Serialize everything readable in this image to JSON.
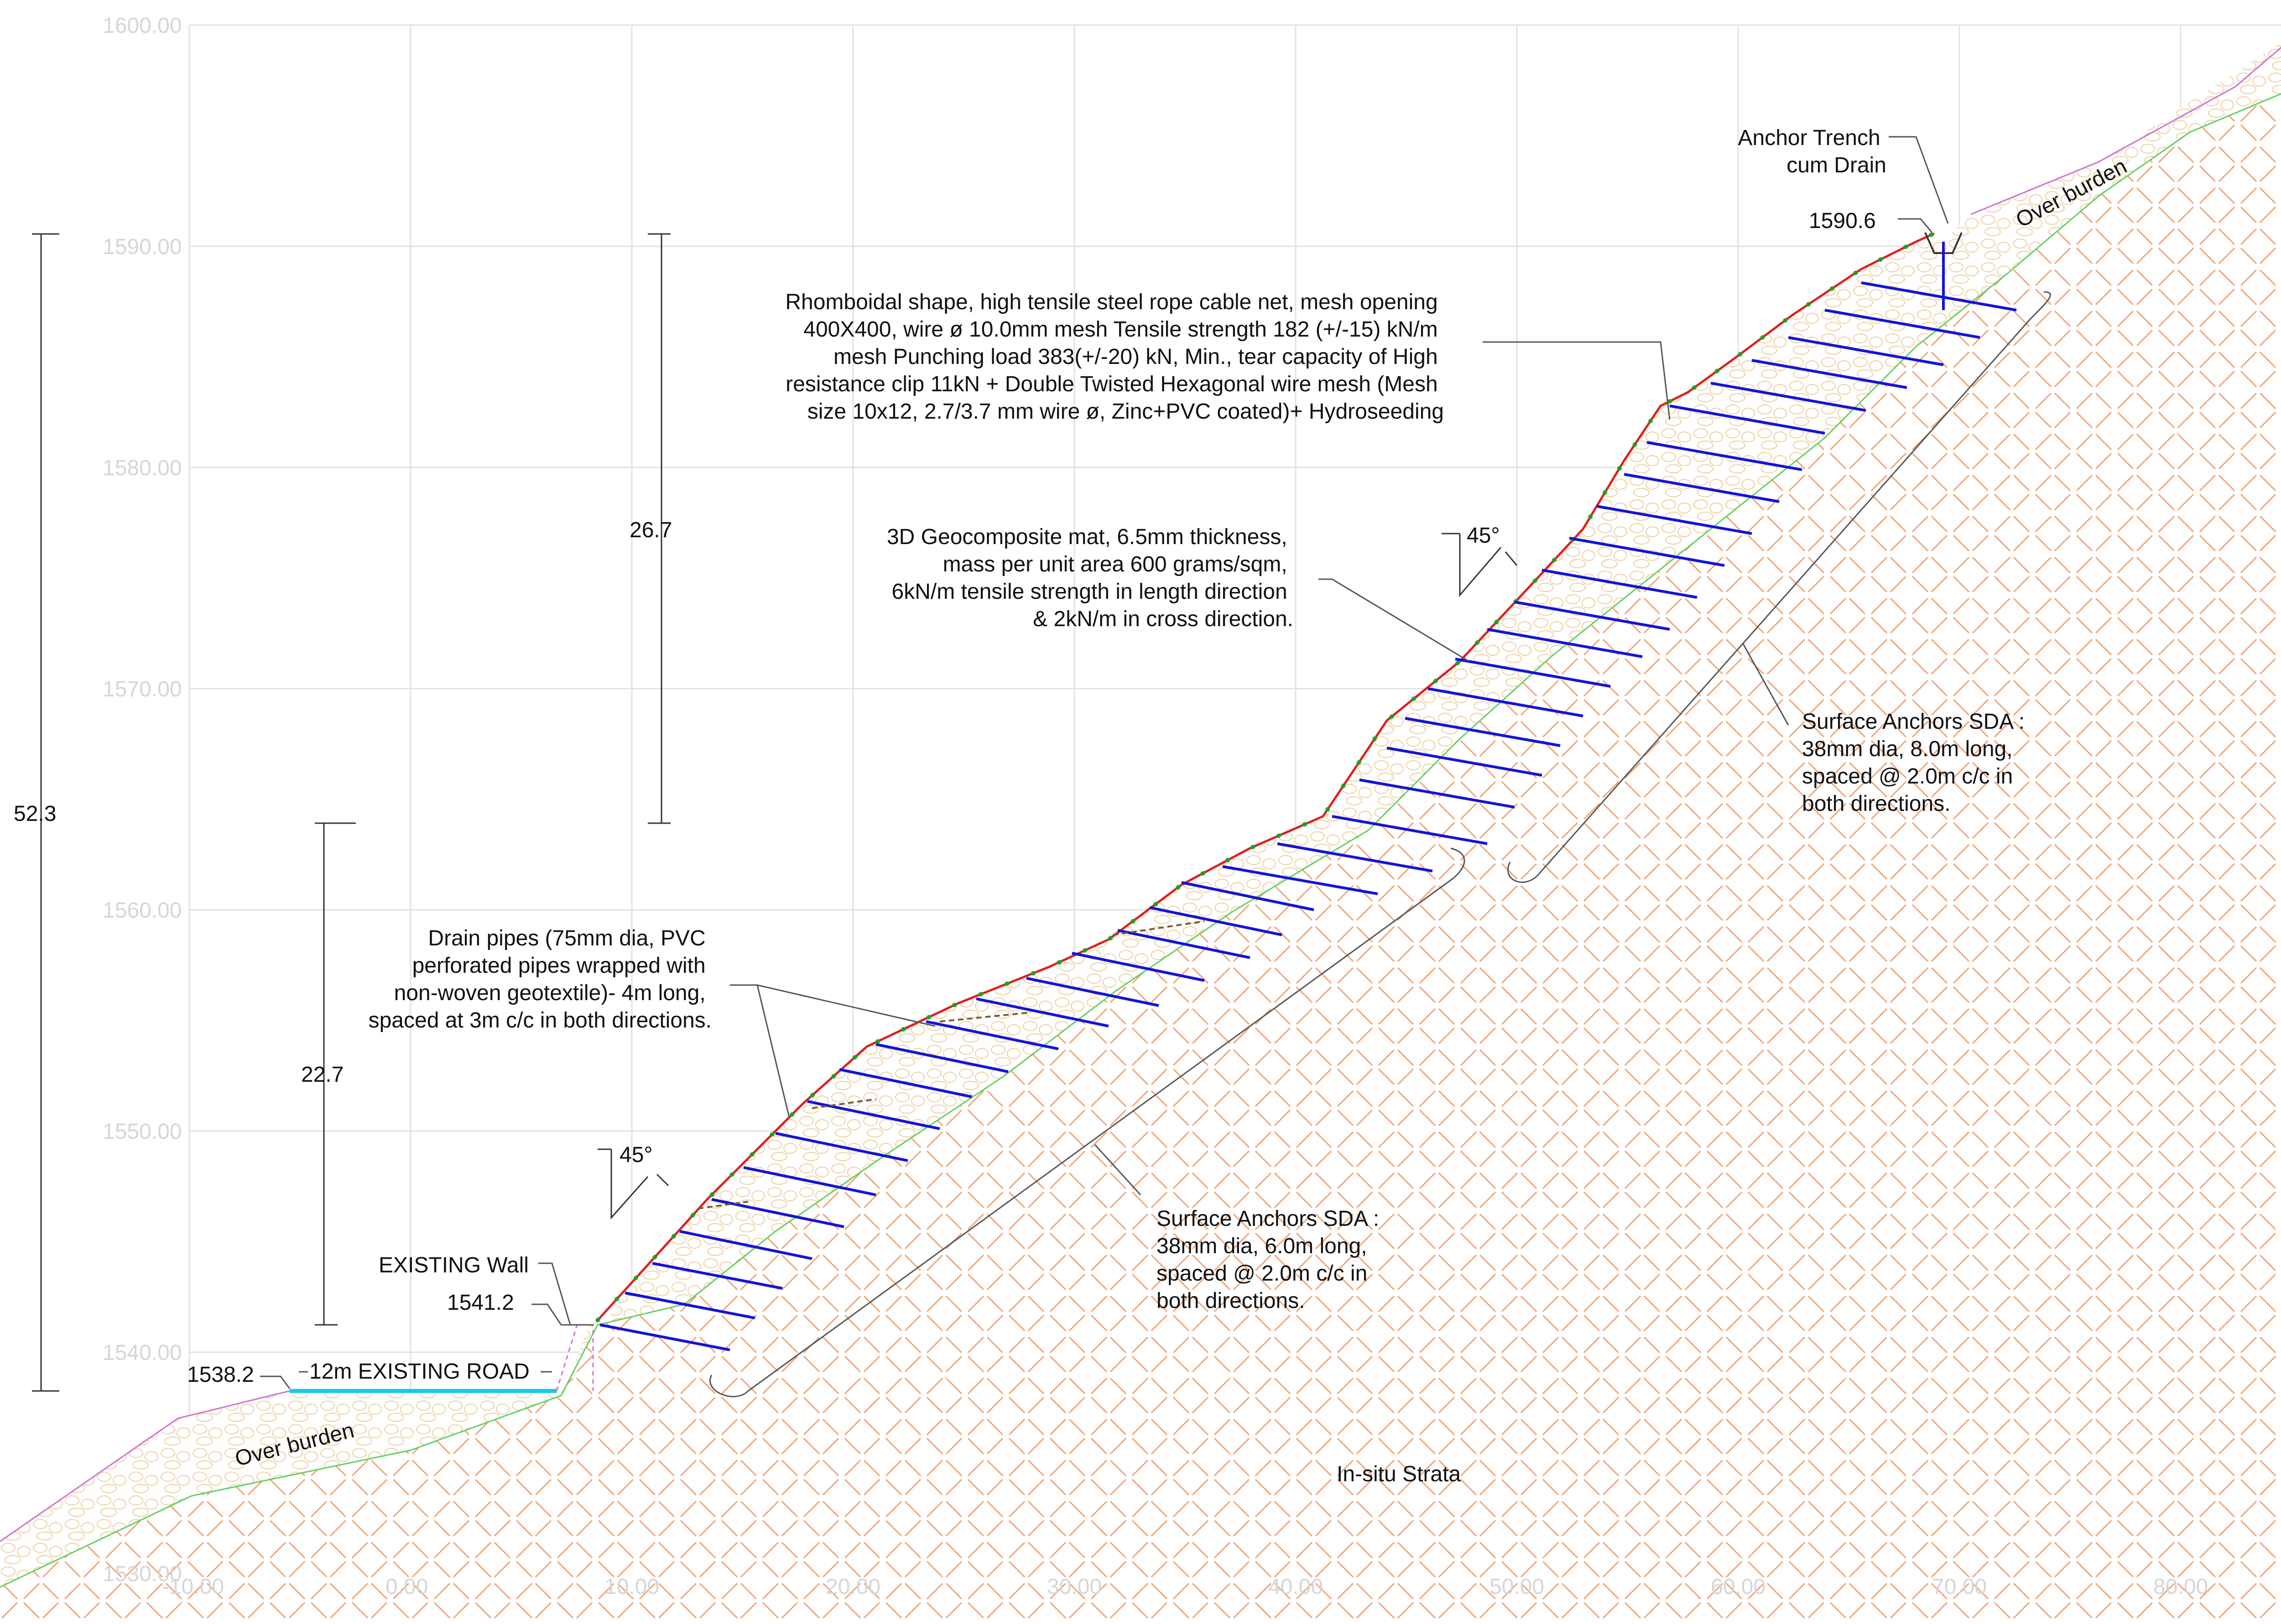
{
  "axes": {
    "y_ticks": [
      "1530.00",
      "1540.00",
      "1550.00",
      "1560.00",
      "1570.00",
      "1580.00",
      "1590.00",
      "1600.00"
    ],
    "x_ticks": [
      "-10.00",
      "0.00",
      "10.00",
      "20.00",
      "30.00",
      "40.00",
      "50.00",
      "60.00",
      "70.00",
      "80.00"
    ]
  },
  "dimensions": {
    "total_height": "52.3",
    "upper_height": "26.7",
    "lower_height": "22.7",
    "upper_angle": "45°",
    "lower_angle": "45°"
  },
  "levels": {
    "road": "1538.2",
    "wall_top": "1541.2",
    "crest": "1590.6"
  },
  "labels": {
    "road": "12m EXISTING ROAD",
    "wall": "EXISTING Wall",
    "overburden_left": "Over burden",
    "overburden_right": "Over burden",
    "insitu": "In-situ Strata",
    "anchor_trench": [
      "Anchor Trench",
      "cum Drain"
    ],
    "cable_net": [
      "Rhomboidal shape, high tensile steel rope cable net, mesh opening",
      "400X400, wire ø 10.0mm mesh Tensile strength 182 (+/-15) kN/m",
      "mesh Punching load 383(+/-20) kN, Min., tear capacity of High",
      "resistance clip 11kN + Double Twisted Hexagonal wire mesh (Mesh",
      "size 10x12, 2.7/3.7 mm wire ø, Zinc+PVC coated)+ Hydroseeding"
    ],
    "geocomposite": [
      "3D Geocomposite mat, 6.5mm thickness,",
      "mass per unit area 600 grams/sqm,",
      "6kN/m tensile strength in length direction",
      "& 2kN/m in cross direction."
    ],
    "drain_pipes": [
      "Drain pipes (75mm dia, PVC",
      "perforated pipes wrapped with",
      "non-woven geotextile)- 4m long,",
      "spaced at 3m c/c in both directions."
    ],
    "anchors_upper": [
      "Surface Anchors SDA :",
      "38mm dia, 8.0m long,",
      "spaced @ 2.0m c/c in",
      "both directions."
    ],
    "anchors_lower": [
      "Surface Anchors SDA :",
      "38mm dia, 6.0m long,",
      "spaced @ 2.0m c/c in",
      "both directions."
    ]
  },
  "colors": {
    "ground_line": "#d070d0",
    "rock_line": "#60d060",
    "hatch": "#f2a070",
    "overburden_texture": "#eccfa0",
    "anchors": "#1414d8",
    "road": "#18c8e8",
    "facing": "#e02020"
  }
}
